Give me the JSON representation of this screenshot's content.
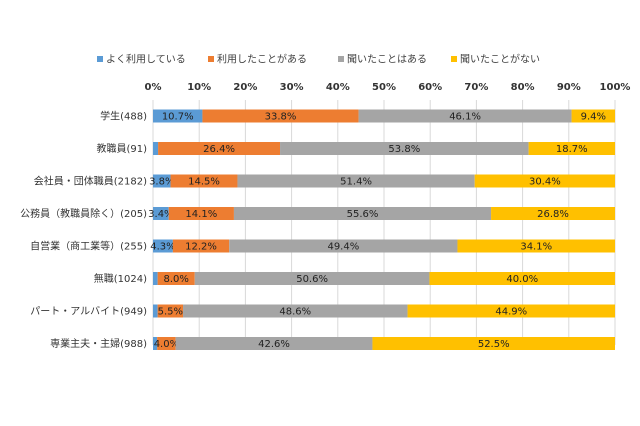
{
  "chart_data": {
    "type": "bar",
    "orientation": "horizontal",
    "stacked": "percent",
    "xlim": [
      0,
      100
    ],
    "x_ticks": [
      "0%",
      "10%",
      "20%",
      "30%",
      "40%",
      "50%",
      "60%",
      "70%",
      "80%",
      "90%",
      "100%"
    ],
    "legend_position": "top",
    "grid": true,
    "categories": [
      "学生(488)",
      "教職員(91)",
      "会社員・団体職員(2182)",
      "公務員（教職員除く）(205)",
      "自営業（商工業等）(255)",
      "無職(1024)",
      "パート・アルバイト(949)",
      "専業主夫・主婦(988)"
    ],
    "series": [
      {
        "name": "よく利用している",
        "color": "#5b9bd5",
        "values": [
          10.7,
          1.1,
          3.8,
          3.4,
          4.3,
          1.0,
          1.0,
          0.9
        ],
        "labels": [
          "10.7%",
          "",
          "3.8%",
          "3.4%",
          "4.3%",
          "",
          "",
          ""
        ]
      },
      {
        "name": "利用したことがある",
        "color": "#ed7d31",
        "values": [
          33.8,
          26.4,
          14.5,
          14.1,
          12.2,
          8.0,
          5.5,
          4.0
        ],
        "labels": [
          "33.8%",
          "26.4%",
          "14.5%",
          "14.1%",
          "12.2%",
          "8.0%",
          "5.5%",
          "4.0%"
        ]
      },
      {
        "name": "聞いたことはある",
        "color": "#a5a5a5",
        "values": [
          46.1,
          53.8,
          51.4,
          55.6,
          49.4,
          50.6,
          48.6,
          42.6
        ],
        "labels": [
          "46.1%",
          "53.8%",
          "51.4%",
          "55.6%",
          "49.4%",
          "50.6%",
          "48.6%",
          "42.6%"
        ]
      },
      {
        "name": "聞いたことがない",
        "color": "#ffc000",
        "values": [
          9.4,
          18.7,
          30.4,
          26.8,
          34.1,
          40.0,
          44.9,
          52.5
        ],
        "labels": [
          "9.4%",
          "18.7%",
          "30.4%",
          "26.8%",
          "34.1%",
          "40.0%",
          "44.9%",
          "52.5%"
        ]
      }
    ]
  }
}
